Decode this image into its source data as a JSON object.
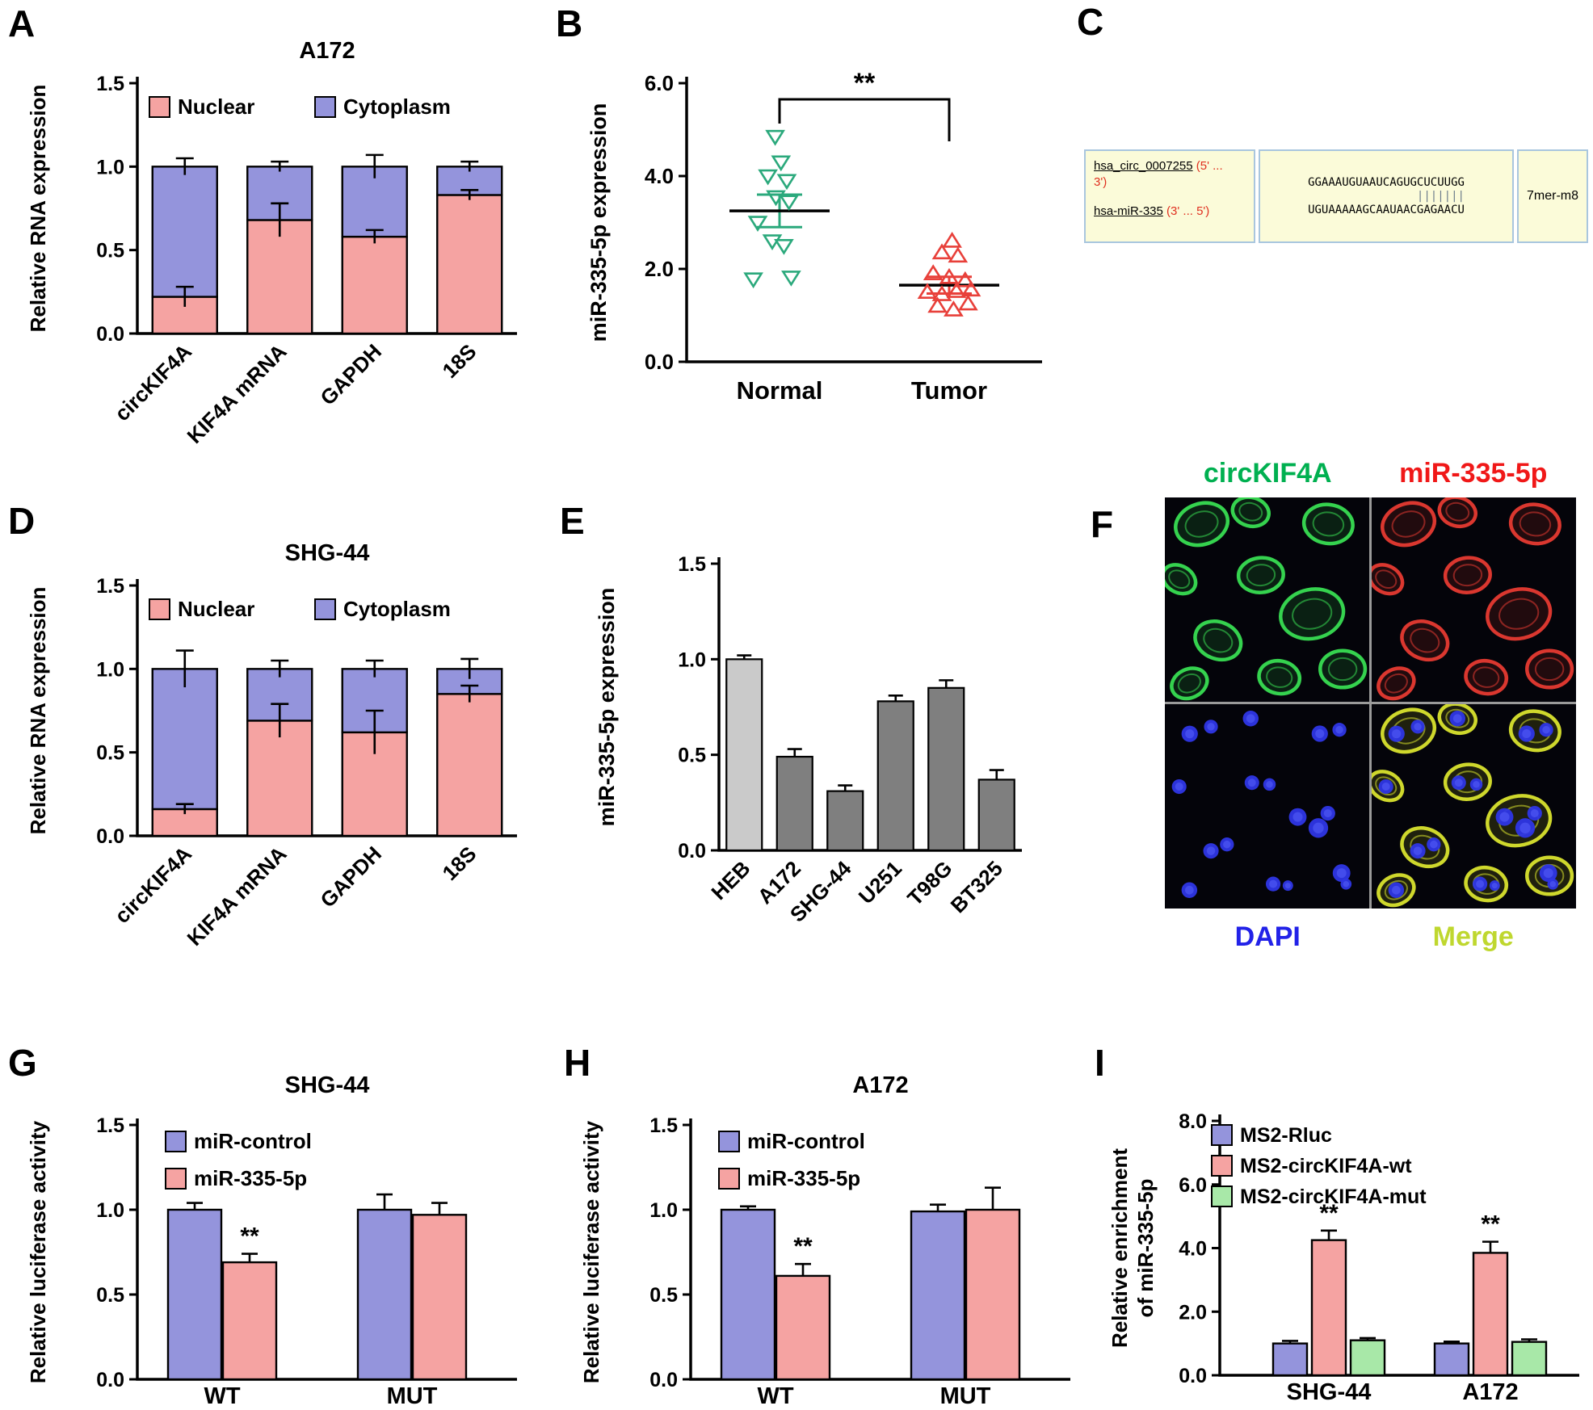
{
  "panels": {
    "A": {
      "letter": "A"
    },
    "B": {
      "letter": "B"
    },
    "C": {
      "letter": "C",
      "box1": {
        "circ_name": "hsa_circ_0007255",
        "circ_tail": " (5' ...",
        "circ_tail2": "3')",
        "mir_name": "hsa-miR-335",
        "mir_tail": " (3' ... 5')"
      },
      "box2": {
        "seq_top": "GGAAAUGUAAUCAGUGCUCUUGG",
        "seq_match": "                |||||||",
        "seq_bottom": "UGUAAAAAGCAAUAACGAGAACU"
      },
      "box3": {
        "site_type": "7mer-m8"
      }
    },
    "D": {
      "letter": "D"
    },
    "E": {
      "letter": "E"
    },
    "F": {
      "letter": "F",
      "labels": {
        "top_left": "circKIF4A",
        "top_right": "miR-335-5p",
        "bottom_left": "DAPI",
        "bottom_right": "Merge"
      },
      "label_colors": {
        "top_left": "#00B050",
        "top_right": "#F01818",
        "bottom_left": "#2222E8",
        "bottom_right": "#BFD72F"
      },
      "channel_colors": {
        "circKIF4A": "#38DD52",
        "miR-335-5p": "#E63A32",
        "DAPI": "#2E36E6",
        "Merge": "#D9E32E"
      }
    },
    "G": {
      "letter": "G"
    },
    "H": {
      "letter": "H"
    },
    "I": {
      "letter": "I"
    }
  },
  "chart_data": [
    {
      "id": "A",
      "type": "bar",
      "subtype": "stacked",
      "title": "A172",
      "ylabel": "Relative RNA expression",
      "categories": [
        "circKIF4A",
        "KIF4A mRNA",
        "GAPDH",
        "18S"
      ],
      "series": [
        {
          "name": "Nuclear",
          "color": "#F5A3A2",
          "values": [
            0.22,
            0.68,
            0.58,
            0.83
          ],
          "errors": [
            0.06,
            0.1,
            0.04,
            0.03
          ]
        },
        {
          "name": "Cytoplasm",
          "color": "#9494DC",
          "values": [
            0.78,
            0.32,
            0.42,
            0.17
          ],
          "errors": [
            0.05,
            0.03,
            0.07,
            0.03
          ]
        }
      ],
      "ylim": [
        0,
        1.5
      ],
      "yticks": [
        0,
        0.5,
        1,
        1.5
      ],
      "legend_position": "top-inside"
    },
    {
      "id": "B",
      "type": "scatter",
      "ylabel": "miR-335-5p expression",
      "ylim": [
        0,
        6
      ],
      "yticks": [
        0,
        2,
        4,
        6
      ],
      "significance": {
        "label": "**",
        "between": [
          "Normal",
          "Tumor"
        ]
      },
      "groups": [
        {
          "name": "Normal",
          "color": "#2BA97C",
          "marker": "triangle-down",
          "mean": 3.25,
          "sem": 0.35,
          "points": [
            [
              -0.06,
              4.85
            ],
            [
              0.02,
              4.3
            ],
            [
              -0.16,
              4.0
            ],
            [
              0.1,
              3.9
            ],
            [
              -0.05,
              3.55
            ],
            [
              0.13,
              3.45
            ],
            [
              -0.3,
              3.0
            ],
            [
              -0.1,
              2.6
            ],
            [
              0.06,
              2.5
            ],
            [
              -0.36,
              1.78
            ],
            [
              0.16,
              1.82
            ]
          ]
        },
        {
          "name": "Tumor",
          "color": "#E8403A",
          "marker": "triangle-up",
          "mean": 1.65,
          "sem": 0.18,
          "points": [
            [
              0.04,
              2.6
            ],
            [
              -0.1,
              2.35
            ],
            [
              0.12,
              2.28
            ],
            [
              -0.22,
              1.9
            ],
            [
              0.0,
              1.82
            ],
            [
              0.22,
              1.75
            ],
            [
              -0.3,
              1.5
            ],
            [
              -0.1,
              1.45
            ],
            [
              0.1,
              1.52
            ],
            [
              0.3,
              1.55
            ],
            [
              -0.16,
              1.2
            ],
            [
              0.06,
              1.12
            ],
            [
              0.26,
              1.25
            ]
          ]
        }
      ]
    },
    {
      "id": "D",
      "type": "bar",
      "subtype": "stacked",
      "title": "SHG-44",
      "ylabel": "Relative RNA expression",
      "categories": [
        "circKIF4A",
        "KIF4A mRNA",
        "GAPDH",
        "18S"
      ],
      "series": [
        {
          "name": "Nuclear",
          "color": "#F5A3A2",
          "values": [
            0.16,
            0.69,
            0.62,
            0.85
          ],
          "errors": [
            0.03,
            0.1,
            0.13,
            0.05
          ]
        },
        {
          "name": "Cytoplasm",
          "color": "#9494DC",
          "values": [
            0.84,
            0.31,
            0.38,
            0.15
          ],
          "errors": [
            0.11,
            0.05,
            0.05,
            0.06
          ]
        }
      ],
      "ylim": [
        0,
        1.5
      ],
      "yticks": [
        0,
        0.5,
        1,
        1.5
      ],
      "legend_position": "top-inside"
    },
    {
      "id": "E",
      "type": "bar",
      "ylabel": "miR-335-5p expression",
      "categories": [
        "HEB",
        "A172",
        "SHG-44",
        "U251",
        "T98G",
        "BT325"
      ],
      "values": [
        1.0,
        0.49,
        0.31,
        0.78,
        0.85,
        0.37
      ],
      "errors": [
        0.02,
        0.04,
        0.03,
        0.03,
        0.04,
        0.05
      ],
      "bar_colors": [
        "#CACACA",
        "#7F7F7F",
        "#7F7F7F",
        "#7F7F7F",
        "#7F7F7F",
        "#7F7F7F"
      ],
      "ylim": [
        0,
        1.5
      ],
      "yticks": [
        0,
        0.5,
        1,
        1.5
      ]
    },
    {
      "id": "G",
      "type": "bar",
      "subtype": "grouped",
      "title": "SHG-44",
      "ylabel": "Relative luciferase activity",
      "categories": [
        "WT",
        "MUT"
      ],
      "series": [
        {
          "name": "miR-control",
          "color": "#9494DC",
          "values": [
            1.0,
            1.0
          ],
          "errors": [
            0.04,
            0.09
          ]
        },
        {
          "name": "miR-335-5p",
          "color": "#F5A3A2",
          "values": [
            0.69,
            0.97
          ],
          "errors": [
            0.05,
            0.07
          ],
          "sig": [
            "**",
            ""
          ]
        }
      ],
      "ylim": [
        0,
        1.5
      ],
      "yticks": [
        0,
        0.5,
        1,
        1.5
      ]
    },
    {
      "id": "H",
      "type": "bar",
      "subtype": "grouped",
      "title": "A172",
      "ylabel": "Relative luciferase activity",
      "categories": [
        "WT",
        "MUT"
      ],
      "series": [
        {
          "name": "miR-control",
          "color": "#9494DC",
          "values": [
            1.0,
            0.99
          ],
          "errors": [
            0.02,
            0.04
          ]
        },
        {
          "name": "miR-335-5p",
          "color": "#F5A3A2",
          "values": [
            0.61,
            1.0
          ],
          "errors": [
            0.07,
            0.13
          ],
          "sig": [
            "**",
            ""
          ]
        }
      ],
      "ylim": [
        0,
        1.5
      ],
      "yticks": [
        0,
        0.5,
        1,
        1.5
      ]
    },
    {
      "id": "I",
      "type": "bar",
      "subtype": "grouped",
      "ylabel_lines": [
        "Relative enrichment",
        "of miR-335-5p"
      ],
      "categories": [
        "SHG-44",
        "A172"
      ],
      "series": [
        {
          "name": "MS2-Rluc",
          "color": "#9494DC",
          "values": [
            1.0,
            1.0
          ],
          "errors": [
            0.08,
            0.06
          ]
        },
        {
          "name": "MS2-circKIF4A-wt",
          "color": "#F5A3A2",
          "values": [
            4.25,
            3.85
          ],
          "errors": [
            0.3,
            0.35
          ],
          "sig": [
            "**",
            "**"
          ]
        },
        {
          "name": "MS2-circKIF4A-mut",
          "color": "#A8E8A8",
          "values": [
            1.1,
            1.05
          ],
          "errors": [
            0.07,
            0.08
          ]
        }
      ],
      "ylim": [
        0,
        8
      ],
      "yticks": [
        0,
        2,
        4,
        6,
        8
      ]
    }
  ]
}
